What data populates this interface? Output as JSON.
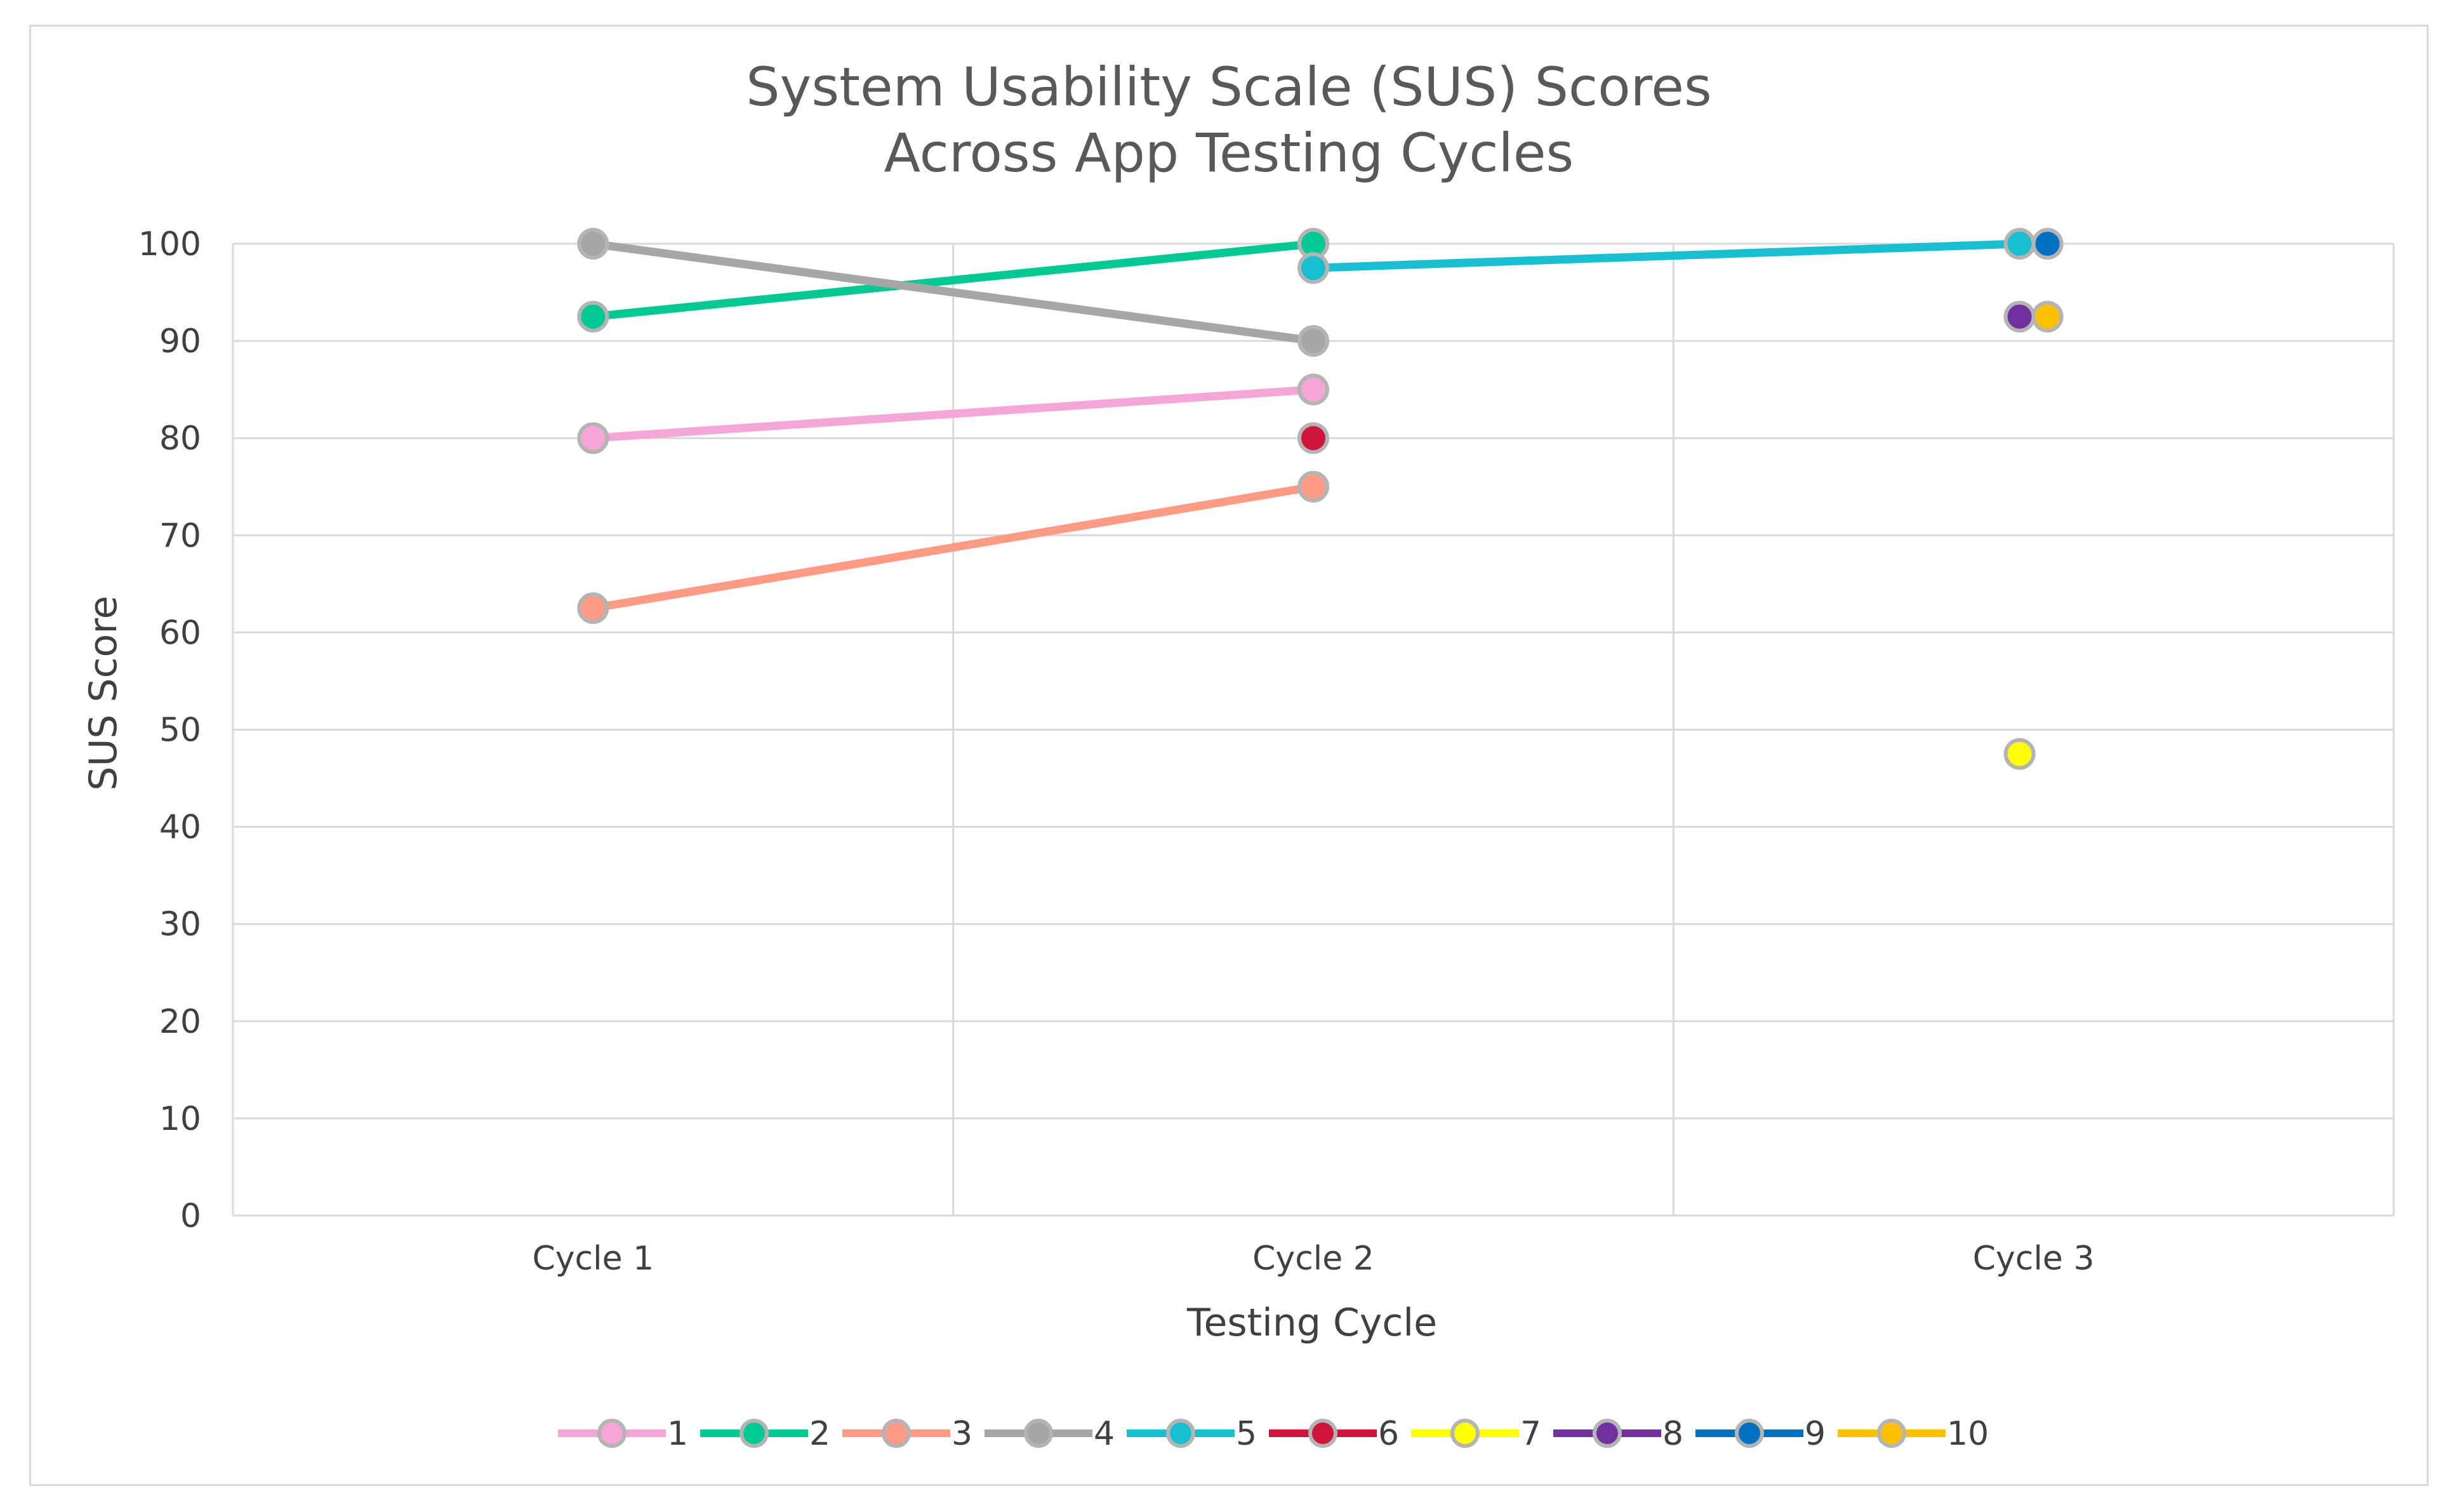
{
  "chart_data": {
    "type": "line",
    "title_lines": [
      "System Usability Scale (SUS) Scores",
      "Across App Testing Cycles"
    ],
    "xlabel": "Testing Cycle",
    "ylabel": "SUS Score",
    "categories": [
      "Cycle 1",
      "Cycle 2",
      "Cycle 3"
    ],
    "ylim": [
      0,
      100
    ],
    "yticks": [
      "0",
      "10",
      "20",
      "30",
      "40",
      "50",
      "60",
      "70",
      "80",
      "90",
      "100"
    ],
    "grid": true,
    "legend_position": "bottom",
    "series": [
      {
        "name": "1",
        "color": "#f4a6d7",
        "values": [
          80,
          85,
          null
        ]
      },
      {
        "name": "2",
        "color": "#00c994",
        "values": [
          92.5,
          100,
          null
        ]
      },
      {
        "name": "3",
        "color": "#ff9a84",
        "values": [
          62.5,
          75,
          null
        ]
      },
      {
        "name": "4",
        "color": "#a6a6a6",
        "values": [
          100,
          90,
          null
        ]
      },
      {
        "name": "5",
        "color": "#17c0d0",
        "values": [
          null,
          97.5,
          100
        ]
      },
      {
        "name": "6",
        "color": "#d0143c",
        "values": [
          null,
          80,
          null
        ]
      },
      {
        "name": "7",
        "color": "#ffff00",
        "values": [
          null,
          null,
          47.5
        ]
      },
      {
        "name": "8",
        "color": "#7030a0",
        "values": [
          null,
          null,
          92.5
        ]
      },
      {
        "name": "9",
        "color": "#0070c0",
        "values": [
          null,
          null,
          100
        ]
      },
      {
        "name": "10",
        "color": "#ffc000",
        "values": [
          null,
          null,
          92.5
        ]
      }
    ]
  }
}
